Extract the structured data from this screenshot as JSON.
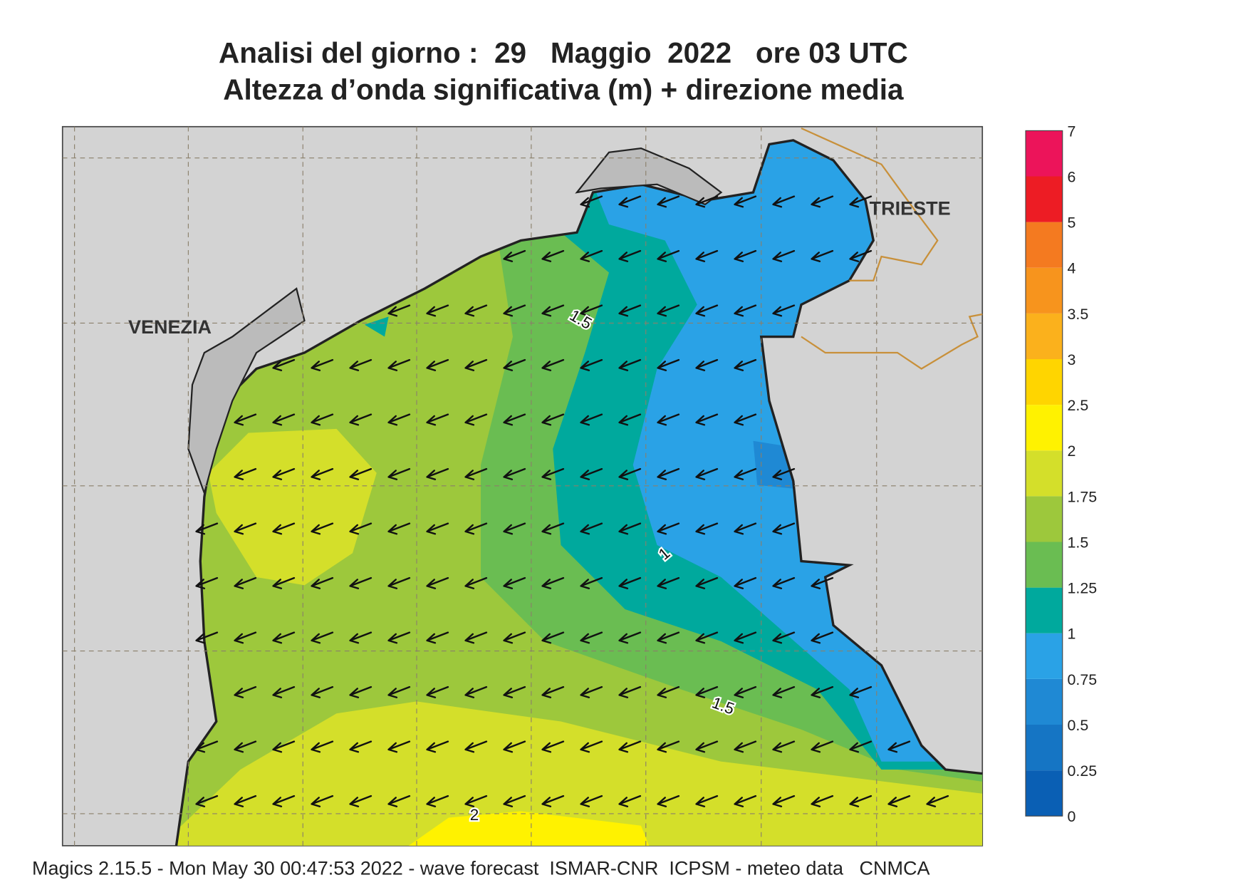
{
  "title": {
    "line1": "Analisi del giorno :  29   Maggio  2022   ore 03 UTC",
    "line2": "Altezza d’onda significativa (m) + direzione media"
  },
  "map": {
    "places": [
      "VENEZIA",
      "TRIESTE"
    ],
    "contour_labels": [
      1.5,
      1,
      1.5,
      2
    ]
  },
  "legend": {
    "levels": [
      0,
      0.25,
      0.5,
      0.75,
      1,
      1.25,
      1.5,
      1.75,
      2,
      2.5,
      3,
      3.5,
      4,
      5,
      6,
      7
    ],
    "colors": [
      "#0a5fb4",
      "#1575c4",
      "#1f89d4",
      "#2aa2e6",
      "#00a99d",
      "#6abd52",
      "#9dc83c",
      "#d4df2a",
      "#fff200",
      "#ffd500",
      "#fbb11c",
      "#f7941d",
      "#f47a20",
      "#ed1c24",
      "#ec145a"
    ]
  },
  "footer": "Magics 2.15.5 - Mon May 30 00:47:53 2022 - wave forecast  ISMAR-CNR  ICPSM - meteo data   CNMCA"
}
